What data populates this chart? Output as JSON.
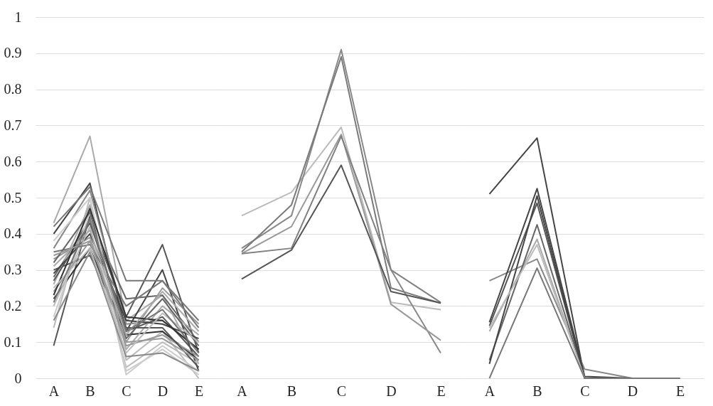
{
  "chart_data": [
    {
      "type": "line",
      "categories": [
        "A",
        "B",
        "C",
        "D",
        "E"
      ],
      "ylim": [
        0,
        1
      ],
      "yticks": [
        0,
        0.1,
        0.2,
        0.3,
        0.4,
        0.5,
        0.6,
        0.7,
        0.8,
        0.9,
        1
      ],
      "grid": "y",
      "series": [
        {
          "color": "#555555",
          "values": [
            0.09,
            0.45,
            0.17,
            0.37,
            0.07
          ]
        },
        {
          "color": "#aaaaaa",
          "values": [
            0.43,
            0.67,
            0.16,
            0.23,
            0.04
          ]
        },
        {
          "color": "#444444",
          "values": [
            0.4,
            0.54,
            0.13,
            0.3,
            0.02
          ]
        },
        {
          "color": "#777777",
          "values": [
            0.42,
            0.53,
            0.27,
            0.27,
            0.16
          ]
        },
        {
          "color": "#bbbbbb",
          "values": [
            0.14,
            0.5,
            0.05,
            0.13,
            0.0
          ]
        },
        {
          "color": "#666666",
          "values": [
            0.28,
            0.44,
            0.22,
            0.23,
            0.1
          ]
        },
        {
          "color": "#999999",
          "values": [
            0.33,
            0.39,
            0.1,
            0.25,
            0.15
          ]
        },
        {
          "color": "#333333",
          "values": [
            0.22,
            0.36,
            0.12,
            0.13,
            0.05
          ]
        },
        {
          "color": "#cccccc",
          "values": [
            0.17,
            0.46,
            0.01,
            0.09,
            0.02
          ]
        },
        {
          "color": "#888888",
          "values": [
            0.36,
            0.52,
            0.15,
            0.16,
            0.08
          ]
        },
        {
          "color": "#555555",
          "values": [
            0.3,
            0.34,
            0.13,
            0.17,
            0.06
          ]
        },
        {
          "color": "#aaaaaa",
          "values": [
            0.26,
            0.48,
            0.08,
            0.2,
            0.12
          ]
        },
        {
          "color": "#444444",
          "values": [
            0.29,
            0.4,
            0.16,
            0.15,
            0.11
          ]
        },
        {
          "color": "#bbbbbb",
          "values": [
            0.2,
            0.42,
            0.03,
            0.1,
            0.04
          ]
        },
        {
          "color": "#777777",
          "values": [
            0.35,
            0.37,
            0.2,
            0.27,
            0.14
          ]
        },
        {
          "color": "#999999",
          "values": [
            0.24,
            0.38,
            0.09,
            0.12,
            0.06
          ]
        },
        {
          "color": "#666666",
          "values": [
            0.32,
            0.46,
            0.11,
            0.22,
            0.09
          ]
        },
        {
          "color": "#cccccc",
          "values": [
            0.38,
            0.5,
            0.02,
            0.08,
            0.01
          ]
        },
        {
          "color": "#555555",
          "values": [
            0.27,
            0.43,
            0.14,
            0.14,
            0.03
          ]
        },
        {
          "color": "#888888",
          "values": [
            0.16,
            0.35,
            0.06,
            0.07,
            0.02
          ]
        },
        {
          "color": "#aaaaaa",
          "values": [
            0.31,
            0.41,
            0.12,
            0.24,
            0.13
          ]
        },
        {
          "color": "#333333",
          "values": [
            0.23,
            0.47,
            0.17,
            0.16,
            0.08
          ]
        },
        {
          "color": "#999999",
          "values": [
            0.34,
            0.38,
            0.1,
            0.11,
            0.05
          ]
        },
        {
          "color": "#bbbbbb",
          "values": [
            0.25,
            0.36,
            0.07,
            0.18,
            0.1
          ]
        },
        {
          "color": "#777777",
          "values": [
            0.21,
            0.44,
            0.13,
            0.19,
            0.07
          ]
        }
      ]
    },
    {
      "type": "line",
      "categories": [
        "A",
        "B",
        "C",
        "D",
        "E"
      ],
      "ylim": [
        0,
        1
      ],
      "yticks": [
        0,
        0.1,
        0.2,
        0.3,
        0.4,
        0.5,
        0.6,
        0.7,
        0.8,
        0.9,
        1
      ],
      "grid": "y",
      "tick_labels": "x",
      "series": [
        {
          "color": "#bbbbbb",
          "values": [
            0.45,
            0.515,
            0.695,
            0.21,
            0.19
          ]
        },
        {
          "color": "#888888",
          "values": [
            0.36,
            0.45,
            0.91,
            0.3,
            0.07
          ]
        },
        {
          "color": "#7a7a7a",
          "values": [
            0.35,
            0.48,
            0.89,
            0.25,
            0.208
          ]
        },
        {
          "color": "#999999",
          "values": [
            0.345,
            0.42,
            0.675,
            0.205,
            0.105
          ]
        },
        {
          "color": "#808080",
          "values": [
            0.345,
            0.36,
            0.67,
            0.3,
            0.21
          ]
        },
        {
          "color": "#555555",
          "values": [
            0.275,
            0.355,
            0.59,
            0.24,
            0.208
          ]
        }
      ]
    },
    {
      "type": "line",
      "categories": [
        "A",
        "B",
        "C",
        "D",
        "E"
      ],
      "ylim": [
        0,
        1
      ],
      "yticks": [
        0,
        0.1,
        0.2,
        0.3,
        0.4,
        0.5,
        0.6,
        0.7,
        0.8,
        0.9,
        1
      ],
      "grid": "y",
      "tick_labels": "x",
      "series": [
        {
          "color": "#444444",
          "values": [
            0.51,
            0.665,
            0.0,
            0.0,
            0.0
          ]
        },
        {
          "color": "#888888",
          "values": [
            0.27,
            0.33,
            0.025,
            0.0,
            0.0
          ]
        },
        {
          "color": "#444444",
          "values": [
            0.155,
            0.525,
            0.005,
            0.0,
            0.0
          ]
        },
        {
          "color": "#555555",
          "values": [
            0.145,
            0.485,
            0.0,
            0.0,
            0.0
          ]
        },
        {
          "color": "#aaaaaa",
          "values": [
            0.13,
            0.385,
            0.0,
            0.0,
            0.0
          ]
        },
        {
          "color": "#666666",
          "values": [
            0.05,
            0.425,
            0.0,
            0.0,
            0.0
          ]
        },
        {
          "color": "#444444",
          "values": [
            0.04,
            0.505,
            0.0,
            0.0,
            0.0
          ]
        },
        {
          "color": "#bbbbbb",
          "values": [
            0.14,
            0.37,
            0.0,
            0.0,
            0.0
          ]
        },
        {
          "color": "#777777",
          "values": [
            0.0,
            0.305,
            0.0,
            0.0,
            0.0
          ]
        }
      ]
    }
  ]
}
